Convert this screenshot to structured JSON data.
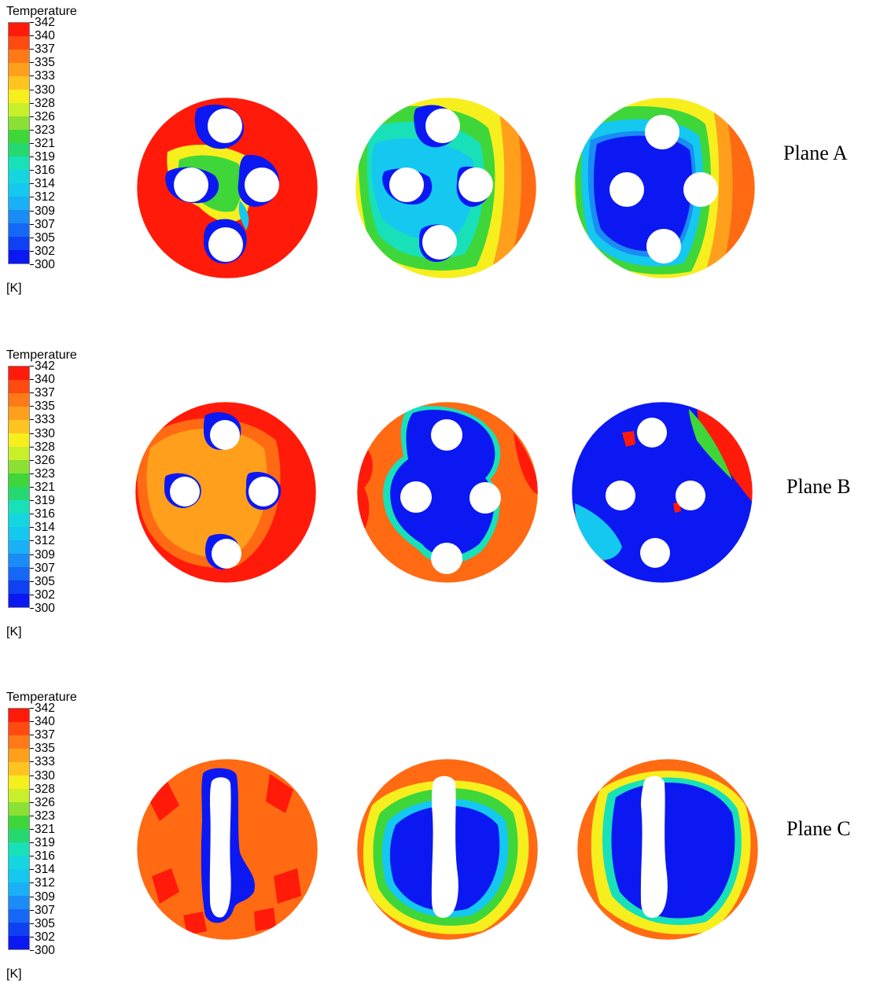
{
  "legend": {
    "title": "Temperature",
    "unit": "[K]",
    "ticks": [
      "342",
      "340",
      "337",
      "335",
      "333",
      "330",
      "328",
      "326",
      "323",
      "321",
      "319",
      "316",
      "314",
      "312",
      "309",
      "307",
      "305",
      "302",
      "300"
    ]
  },
  "colors": {
    "hot": "#ff1a0a",
    "warm": "#ff6a12",
    "orange": "#ff9f1c",
    "yellow": "#f7ee1e",
    "green": "#3fd63a",
    "teal": "#18e0b8",
    "cyan": "#14c8f0",
    "sky": "#1a8cf5",
    "cold": "#0b18f2",
    "hole": "#ffffff"
  },
  "planes": [
    {
      "label": "Plane A",
      "panels": [
        "a1",
        "a2",
        "a3"
      ]
    },
    {
      "label": "Plane B",
      "panels": [
        "b1",
        "b2",
        "b3"
      ]
    },
    {
      "label": "Plane C",
      "panels": [
        "c1",
        "c2",
        "c3"
      ]
    }
  ]
}
